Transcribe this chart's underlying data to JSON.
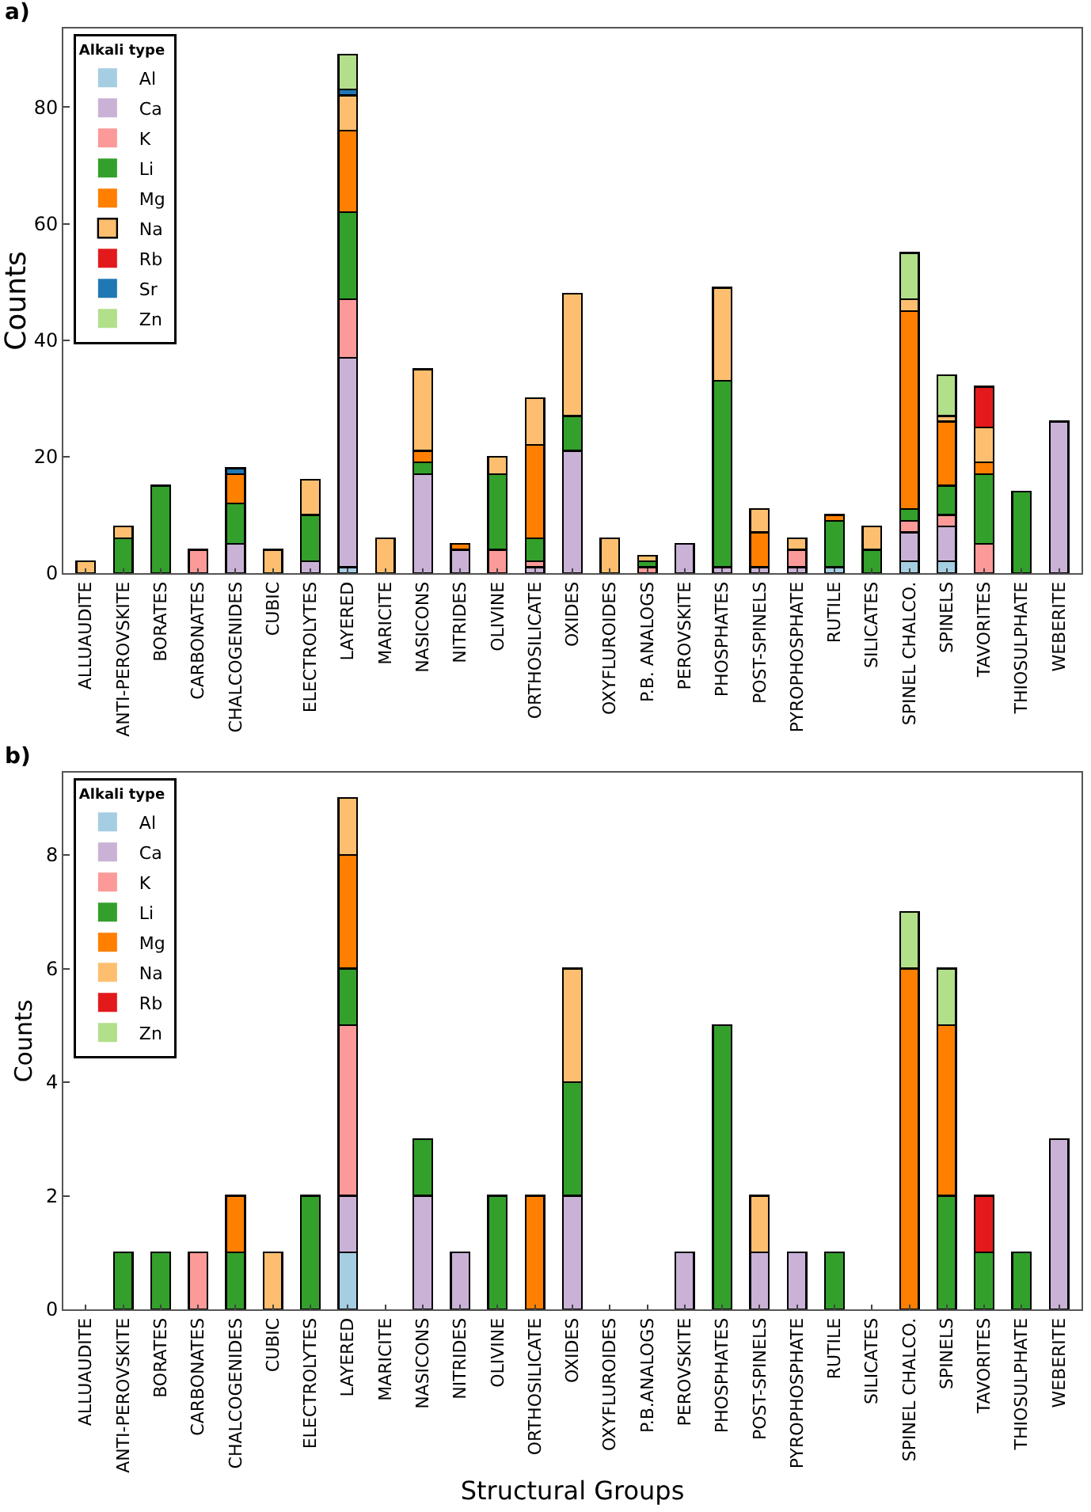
{
  "chart_data": [
    {
      "type": "bar",
      "stacked": true,
      "annotations": [
        "a)"
      ],
      "ylabel": "Counts",
      "legend_title": "Alkali type",
      "legend": "top left",
      "grid": false,
      "categories": [
        "ALLUAUDITE",
        "ANTI-PEROVSKITE",
        "BORATES",
        "CARBONATES",
        "CHALCOGENIDES",
        "CUBIC",
        "ELECTROLYTES",
        "LAYERED",
        "MARICITE",
        "NASICONS",
        "NITRIDES",
        "OLIVINE",
        "ORTHOSILICATE",
        "OXIDES",
        "OXYFLUROIDES",
        "P.B. ANALOGS",
        "PEROVSKITE",
        "PHOSPHATES",
        "POST-SPINELS",
        "PYROPHOSPHATE",
        "RUTILE",
        "SILICATES",
        "SPINEL CHALCO.",
        "SPINELS",
        "TAVORITES",
        "THIOSULPHATE",
        "WEBERITE"
      ],
      "ylim": [
        0,
        93.5
      ],
      "yticks": [
        0,
        20,
        40,
        60,
        80
      ],
      "series": [
        {
          "name": "Al",
          "color": "#a6cee3",
          "values": [
            0,
            0,
            0,
            0,
            0,
            0,
            0,
            1,
            0,
            0,
            0,
            0,
            0,
            0,
            0,
            0,
            0,
            0,
            0,
            0,
            1,
            0,
            2,
            2,
            0,
            0,
            0
          ]
        },
        {
          "name": "Ca",
          "color": "#cab2d6",
          "values": [
            0,
            0,
            0,
            0,
            5,
            0,
            2,
            36,
            0,
            17,
            4,
            0,
            1,
            21,
            0,
            0,
            5,
            1,
            1,
            1,
            0,
            0,
            5,
            6,
            0,
            0,
            26
          ]
        },
        {
          "name": "K",
          "color": "#fb9a99",
          "values": [
            0,
            0,
            0,
            4,
            0,
            0,
            0,
            10,
            0,
            0,
            0,
            4,
            1,
            0,
            0,
            1,
            0,
            0,
            0,
            3,
            0,
            0,
            2,
            2,
            5,
            0,
            0
          ]
        },
        {
          "name": "Li",
          "color": "#33a02c",
          "values": [
            0,
            6,
            15,
            0,
            7,
            0,
            8,
            15,
            0,
            2,
            0,
            13,
            4,
            6,
            0,
            1,
            0,
            32,
            0,
            0,
            8,
            4,
            2,
            5,
            12,
            14,
            0
          ]
        },
        {
          "name": "Mg",
          "color": "#ff7f00",
          "values": [
            0,
            0,
            0,
            0,
            5,
            0,
            0,
            14,
            0,
            2,
            1,
            0,
            16,
            0,
            0,
            0,
            0,
            0,
            6,
            0,
            1,
            0,
            34,
            11,
            2,
            0,
            0
          ]
        },
        {
          "name": "Na",
          "color": "#fdbf6f",
          "values": [
            2,
            2,
            0,
            0,
            0,
            4,
            6,
            6,
            6,
            14,
            0,
            3,
            8,
            21,
            6,
            1,
            0,
            16,
            4,
            2,
            0,
            4,
            2,
            1,
            6,
            0,
            0
          ]
        },
        {
          "name": "Rb",
          "color": "#e31a1c",
          "values": [
            0,
            0,
            0,
            0,
            0,
            0,
            0,
            0,
            0,
            0,
            0,
            0,
            0,
            0,
            0,
            0,
            0,
            0,
            0,
            0,
            0,
            0,
            0,
            0,
            7,
            0,
            0
          ]
        },
        {
          "name": "Sr",
          "color": "#1f78b4",
          "values": [
            0,
            0,
            0,
            0,
            1,
            0,
            0,
            1,
            0,
            0,
            0,
            0,
            0,
            0,
            0,
            0,
            0,
            0,
            0,
            0,
            0,
            0,
            0,
            0,
            0,
            0,
            0
          ]
        },
        {
          "name": "Zn",
          "color": "#b2df8a",
          "values": [
            0,
            0,
            0,
            0,
            0,
            0,
            0,
            6,
            0,
            0,
            0,
            0,
            0,
            0,
            0,
            0,
            0,
            0,
            0,
            0,
            0,
            0,
            8,
            7,
            0,
            0,
            0
          ]
        }
      ]
    },
    {
      "type": "bar",
      "stacked": true,
      "annotations": [
        "b)"
      ],
      "xlabel": "Structural Groups",
      "ylabel": "Counts",
      "legend_title": "Alkali type",
      "legend": "top left",
      "grid": false,
      "categories": [
        "ALLUAUDITE",
        "ANTI-PEROVSKITE",
        "BORATES",
        "CARBONATES",
        "CHALCOGENIDES",
        "CUBIC",
        "ELECTROLYTES",
        "LAYERED",
        "MARICITE",
        "NASICONS",
        "NITRIDES",
        "OLIVINE",
        "ORTHOSILICATE",
        "OXIDES",
        "OXYFLUROIDES",
        "P.B.ANALOGS",
        "PEROVSKITE",
        "PHOSPHATES",
        "POST-SPINELS",
        "PYROPHOSPHATE",
        "RUTILE",
        "SILICATES",
        "SPINEL CHALCO.",
        "SPINELS",
        "TAVORITES",
        "THIOSULPHATE",
        "WEBERITE"
      ],
      "ylim": [
        0,
        9.45
      ],
      "yticks": [
        0,
        2,
        4,
        6,
        8
      ],
      "series": [
        {
          "name": "Al",
          "color": "#a6cee3",
          "values": [
            0,
            0,
            0,
            0,
            0,
            0,
            0,
            1,
            0,
            0,
            0,
            0,
            0,
            0,
            0,
            0,
            0,
            0,
            0,
            0,
            0,
            0,
            0,
            0,
            0,
            0,
            0
          ]
        },
        {
          "name": "Ca",
          "color": "#cab2d6",
          "values": [
            0,
            0,
            0,
            0,
            0,
            0,
            0,
            1,
            0,
            2,
            1,
            0,
            0,
            2,
            0,
            0,
            1,
            0,
            1,
            1,
            0,
            0,
            0,
            0,
            0,
            0,
            3
          ]
        },
        {
          "name": "K",
          "color": "#fb9a99",
          "values": [
            0,
            0,
            0,
            1,
            0,
            0,
            0,
            3,
            0,
            0,
            0,
            0,
            0,
            0,
            0,
            0,
            0,
            0,
            0,
            0,
            0,
            0,
            0,
            0,
            0,
            0,
            0
          ]
        },
        {
          "name": "Li",
          "color": "#33a02c",
          "values": [
            0,
            1,
            1,
            0,
            1,
            0,
            2,
            1,
            0,
            1,
            0,
            2,
            0,
            2,
            0,
            0,
            0,
            5,
            0,
            0,
            1,
            0,
            0,
            2,
            1,
            1,
            0
          ]
        },
        {
          "name": "Mg",
          "color": "#ff7f00",
          "values": [
            0,
            0,
            0,
            0,
            1,
            0,
            0,
            2,
            0,
            0,
            0,
            0,
            2,
            0,
            0,
            0,
            0,
            0,
            0,
            0,
            0,
            0,
            6,
            3,
            0,
            0,
            0
          ]
        },
        {
          "name": "Na",
          "color": "#fdbf6f",
          "values": [
            0,
            0,
            0,
            0,
            0,
            1,
            0,
            1,
            0,
            0,
            0,
            0,
            0,
            2,
            0,
            0,
            0,
            0,
            1,
            0,
            0,
            0,
            0,
            0,
            0,
            0,
            0
          ]
        },
        {
          "name": "Rb",
          "color": "#e31a1c",
          "values": [
            0,
            0,
            0,
            0,
            0,
            0,
            0,
            0,
            0,
            0,
            0,
            0,
            0,
            0,
            0,
            0,
            0,
            0,
            0,
            0,
            0,
            0,
            0,
            0,
            1,
            0,
            0
          ]
        },
        {
          "name": "Zn",
          "color": "#b2df8a",
          "values": [
            0,
            0,
            0,
            0,
            0,
            0,
            0,
            0,
            0,
            0,
            0,
            0,
            0,
            0,
            0,
            0,
            0,
            0,
            0,
            0,
            0,
            0,
            1,
            1,
            0,
            0,
            0
          ]
        }
      ]
    }
  ]
}
